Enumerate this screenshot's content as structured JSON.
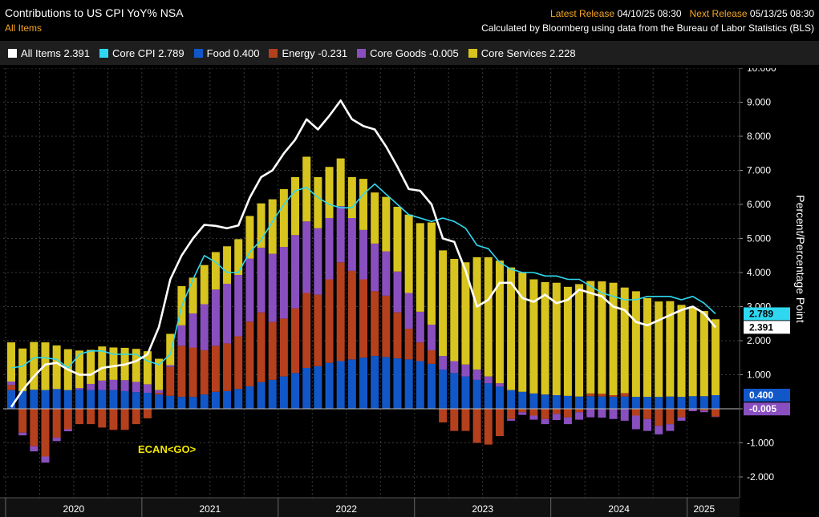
{
  "header": {
    "title": "Contributions to US CPI YoY% NSA",
    "subtitle": "All Items",
    "latest_label": "Latest Release",
    "latest_value": "04/10/25 08:30",
    "next_label": "Next Release",
    "next_value": "05/13/25 08:30",
    "source": "Calculated by Bloomberg using data from the Bureau of Labor Statistics (BLS)"
  },
  "legend": [
    {
      "label": "All Items",
      "value": "2.391",
      "color": "#ffffff"
    },
    {
      "label": "Core CPI",
      "value": "2.789",
      "color": "#2fd8f0"
    },
    {
      "label": "Food",
      "value": "0.400",
      "color": "#1257c8"
    },
    {
      "label": "Energy",
      "value": "-0.231",
      "color": "#b5401d"
    },
    {
      "label": "Core Goods",
      "value": "-0.005",
      "color": "#8a4fbf"
    },
    {
      "label": "Core Services",
      "value": "2.228",
      "color": "#d8c41e"
    }
  ],
  "watermark": "ECAN<GO>",
  "chart_data": {
    "type": "bar",
    "stacked": true,
    "ylabel": "Percent/Percentage Point",
    "ylim": [
      -2.8,
      10.0
    ],
    "yticks": [
      "10.000",
      "9.000",
      "8.000",
      "7.000",
      "6.000",
      "5.000",
      "4.000",
      "3.000",
      "2.000",
      "1.000",
      "0.000",
      "-1.000",
      "-2.000"
    ],
    "ytick_values": [
      10,
      9,
      8,
      7,
      6,
      5,
      4,
      3,
      2,
      1,
      0,
      -1,
      -2
    ],
    "year_labels": [
      "2020",
      "2021",
      "2022",
      "2023",
      "2024",
      "2025"
    ],
    "categories": [
      "Jan-2020",
      "Feb-2020",
      "Mar-2020",
      "Apr-2020",
      "May-2020",
      "Jun-2020",
      "Jul-2020",
      "Aug-2020",
      "Sep-2020",
      "Oct-2020",
      "Nov-2020",
      "Dec-2020",
      "Jan-2021",
      "Feb-2021",
      "Mar-2021",
      "Apr-2021",
      "May-2021",
      "Jun-2021",
      "Jul-2021",
      "Aug-2021",
      "Sep-2021",
      "Oct-2021",
      "Nov-2021",
      "Dec-2021",
      "Jan-2022",
      "Feb-2022",
      "Mar-2022",
      "Apr-2022",
      "May-2022",
      "Jun-2022",
      "Jul-2022",
      "Aug-2022",
      "Sep-2022",
      "Oct-2022",
      "Nov-2022",
      "Dec-2022",
      "Jan-2023",
      "Feb-2023",
      "Mar-2023",
      "Apr-2023",
      "May-2023",
      "Jun-2023",
      "Jul-2023",
      "Aug-2023",
      "Sep-2023",
      "Oct-2023",
      "Nov-2023",
      "Dec-2023",
      "Jan-2024",
      "Feb-2024",
      "Mar-2024",
      "Apr-2024",
      "May-2024",
      "Jun-2024",
      "Jul-2024",
      "Aug-2024",
      "Sep-2024",
      "Oct-2024",
      "Nov-2024",
      "Dec-2024",
      "Jan-2025",
      "Feb-2025",
      "Mar-2025"
    ],
    "series": [
      {
        "name": "Food",
        "color": "#1257c8",
        "values": [
          0.55,
          0.52,
          0.56,
          0.55,
          0.58,
          0.55,
          0.56,
          0.55,
          0.55,
          0.55,
          0.52,
          0.49,
          0.47,
          0.42,
          0.38,
          0.35,
          0.35,
          0.42,
          0.5,
          0.52,
          0.58,
          0.66,
          0.78,
          0.85,
          0.95,
          1.05,
          1.2,
          1.25,
          1.35,
          1.4,
          1.45,
          1.5,
          1.55,
          1.52,
          1.48,
          1.45,
          1.4,
          1.32,
          1.15,
          1.05,
          0.95,
          0.85,
          0.75,
          0.65,
          0.55,
          0.5,
          0.45,
          0.42,
          0.4,
          0.38,
          0.36,
          0.37,
          0.36,
          0.35,
          0.36,
          0.35,
          0.35,
          0.35,
          0.36,
          0.35,
          0.37,
          0.37,
          0.4
        ]
      },
      {
        "name": "Energy",
        "color": "#b5401d",
        "values": [
          0.15,
          -0.7,
          -1.1,
          -1.4,
          -0.85,
          -0.6,
          -0.45,
          -0.45,
          -0.55,
          -0.62,
          -0.62,
          -0.45,
          -0.28,
          0.05,
          0.85,
          1.5,
          1.45,
          1.3,
          1.35,
          1.4,
          1.55,
          1.9,
          2.05,
          1.7,
          1.7,
          1.9,
          2.2,
          2.1,
          2.45,
          2.9,
          2.6,
          2.3,
          1.9,
          1.8,
          1.35,
          0.9,
          0.55,
          0.4,
          -0.4,
          -0.65,
          -0.65,
          -1.0,
          -1.05,
          -0.8,
          -0.3,
          -0.1,
          -0.2,
          -0.3,
          -0.15,
          -0.25,
          -0.1,
          0.08,
          0.08,
          0.05,
          0.1,
          -0.2,
          -0.3,
          -0.5,
          -0.45,
          -0.25,
          0.0,
          -0.05,
          -0.23
        ]
      },
      {
        "name": "Core Goods",
        "color": "#8a4fbf",
        "values": [
          0.1,
          -0.08,
          -0.15,
          -0.18,
          -0.1,
          -0.06,
          0.05,
          0.18,
          0.28,
          0.3,
          0.32,
          0.3,
          0.25,
          0.08,
          0.05,
          0.6,
          1.0,
          1.35,
          1.65,
          1.75,
          1.8,
          1.85,
          1.9,
          2.0,
          2.1,
          2.15,
          2.1,
          1.95,
          1.8,
          1.65,
          1.55,
          1.45,
          1.4,
          1.3,
          1.2,
          1.05,
          0.9,
          0.75,
          0.4,
          0.35,
          0.35,
          0.3,
          0.2,
          0.1,
          -0.05,
          -0.08,
          -0.12,
          -0.15,
          -0.18,
          -0.2,
          -0.22,
          -0.25,
          -0.26,
          -0.3,
          -0.35,
          -0.4,
          -0.35,
          -0.25,
          -0.2,
          -0.1,
          -0.07,
          -0.05,
          -0.005
        ]
      },
      {
        "name": "Core Services",
        "color": "#d8c41e",
        "values": [
          1.15,
          1.25,
          1.4,
          1.4,
          1.28,
          1.2,
          1.1,
          1.0,
          1.0,
          0.95,
          0.95,
          0.97,
          0.97,
          0.92,
          0.92,
          1.15,
          1.05,
          1.15,
          1.1,
          1.1,
          1.05,
          1.25,
          1.3,
          1.6,
          1.7,
          1.7,
          1.9,
          1.5,
          1.5,
          1.4,
          1.2,
          1.5,
          1.5,
          1.6,
          1.9,
          2.3,
          2.6,
          3.0,
          3.1,
          3.0,
          3.0,
          3.3,
          3.5,
          3.6,
          3.6,
          3.5,
          3.35,
          3.3,
          3.3,
          3.2,
          3.3,
          3.3,
          3.3,
          3.3,
          3.1,
          3.1,
          2.9,
          2.8,
          2.8,
          2.7,
          2.6,
          2.5,
          2.228
        ]
      }
    ],
    "lines": [
      {
        "name": "All Items",
        "color": "#ffffff",
        "values": [
          0.05,
          0.55,
          0.95,
          1.3,
          1.35,
          1.15,
          1.0,
          1.0,
          1.2,
          1.25,
          1.3,
          1.4,
          1.6,
          2.4,
          3.8,
          4.5,
          5.0,
          5.4,
          5.37,
          5.3,
          5.38,
          6.2,
          6.8,
          7.0,
          7.5,
          7.9,
          8.5,
          8.2,
          8.6,
          9.05,
          8.5,
          8.3,
          8.2,
          7.7,
          7.1,
          6.45,
          6.4,
          6.0,
          5.0,
          4.9,
          4.05,
          3.0,
          3.2,
          3.7,
          3.7,
          3.25,
          3.14,
          3.35,
          3.1,
          3.2,
          3.5,
          3.4,
          3.3,
          3.0,
          2.9,
          2.55,
          2.45,
          2.6,
          2.75,
          2.9,
          3.0,
          2.8,
          2.39
        ]
      },
      {
        "name": "Core CPI",
        "color": "#2fd8f0",
        "values": [
          1.2,
          1.25,
          1.5,
          1.5,
          1.45,
          1.2,
          1.6,
          1.7,
          1.7,
          1.6,
          1.6,
          1.6,
          1.4,
          1.3,
          1.6,
          3.0,
          3.8,
          4.5,
          4.3,
          4.0,
          4.0,
          4.6,
          4.95,
          5.5,
          6.0,
          6.4,
          6.5,
          6.2,
          6.0,
          5.9,
          5.9,
          6.3,
          6.6,
          6.3,
          6.0,
          5.7,
          5.6,
          5.5,
          5.6,
          5.5,
          5.3,
          4.8,
          4.7,
          4.3,
          4.1,
          4.0,
          4.0,
          3.9,
          3.9,
          3.8,
          3.8,
          3.6,
          3.4,
          3.3,
          3.2,
          3.2,
          3.3,
          3.3,
          3.3,
          3.2,
          3.3,
          3.1,
          2.789
        ]
      }
    ],
    "end_labels": [
      {
        "text": "2.789",
        "value": 2.789,
        "bg": "#2fd8f0",
        "fg": "#000000"
      },
      {
        "text": "2.391",
        "value": 2.391,
        "bg": "#ffffff",
        "fg": "#000000"
      },
      {
        "text": "0.400",
        "value": 0.4,
        "bg": "#1257c8",
        "fg": "#ffffff"
      },
      {
        "text": "-0.005",
        "value": -0.005,
        "bg": "#8a4fbf",
        "fg": "#ffffff"
      }
    ]
  }
}
